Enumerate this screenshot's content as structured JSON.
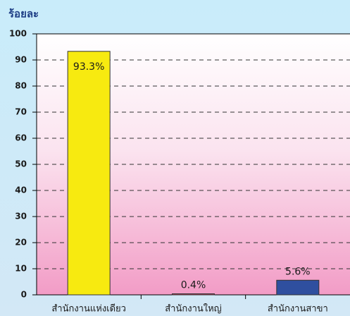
{
  "chart_data": {
    "type": "bar",
    "y_label": "ร้อยละ",
    "categories": [
      "สำนักงานแห่งเดียว",
      "สำนักงานใหญ่",
      "สำนักงานสาขา"
    ],
    "values": [
      93.3,
      0.4,
      5.6
    ],
    "value_labels": [
      "93.3%",
      "0.4%",
      "5.6%"
    ],
    "colors": [
      "#f7ea10",
      "#c83a5a",
      "#2f4f9f"
    ],
    "ylim": [
      0,
      100
    ],
    "yticks": [
      0,
      10,
      20,
      30,
      40,
      50,
      60,
      70,
      80,
      90,
      100
    ],
    "grid": true
  }
}
